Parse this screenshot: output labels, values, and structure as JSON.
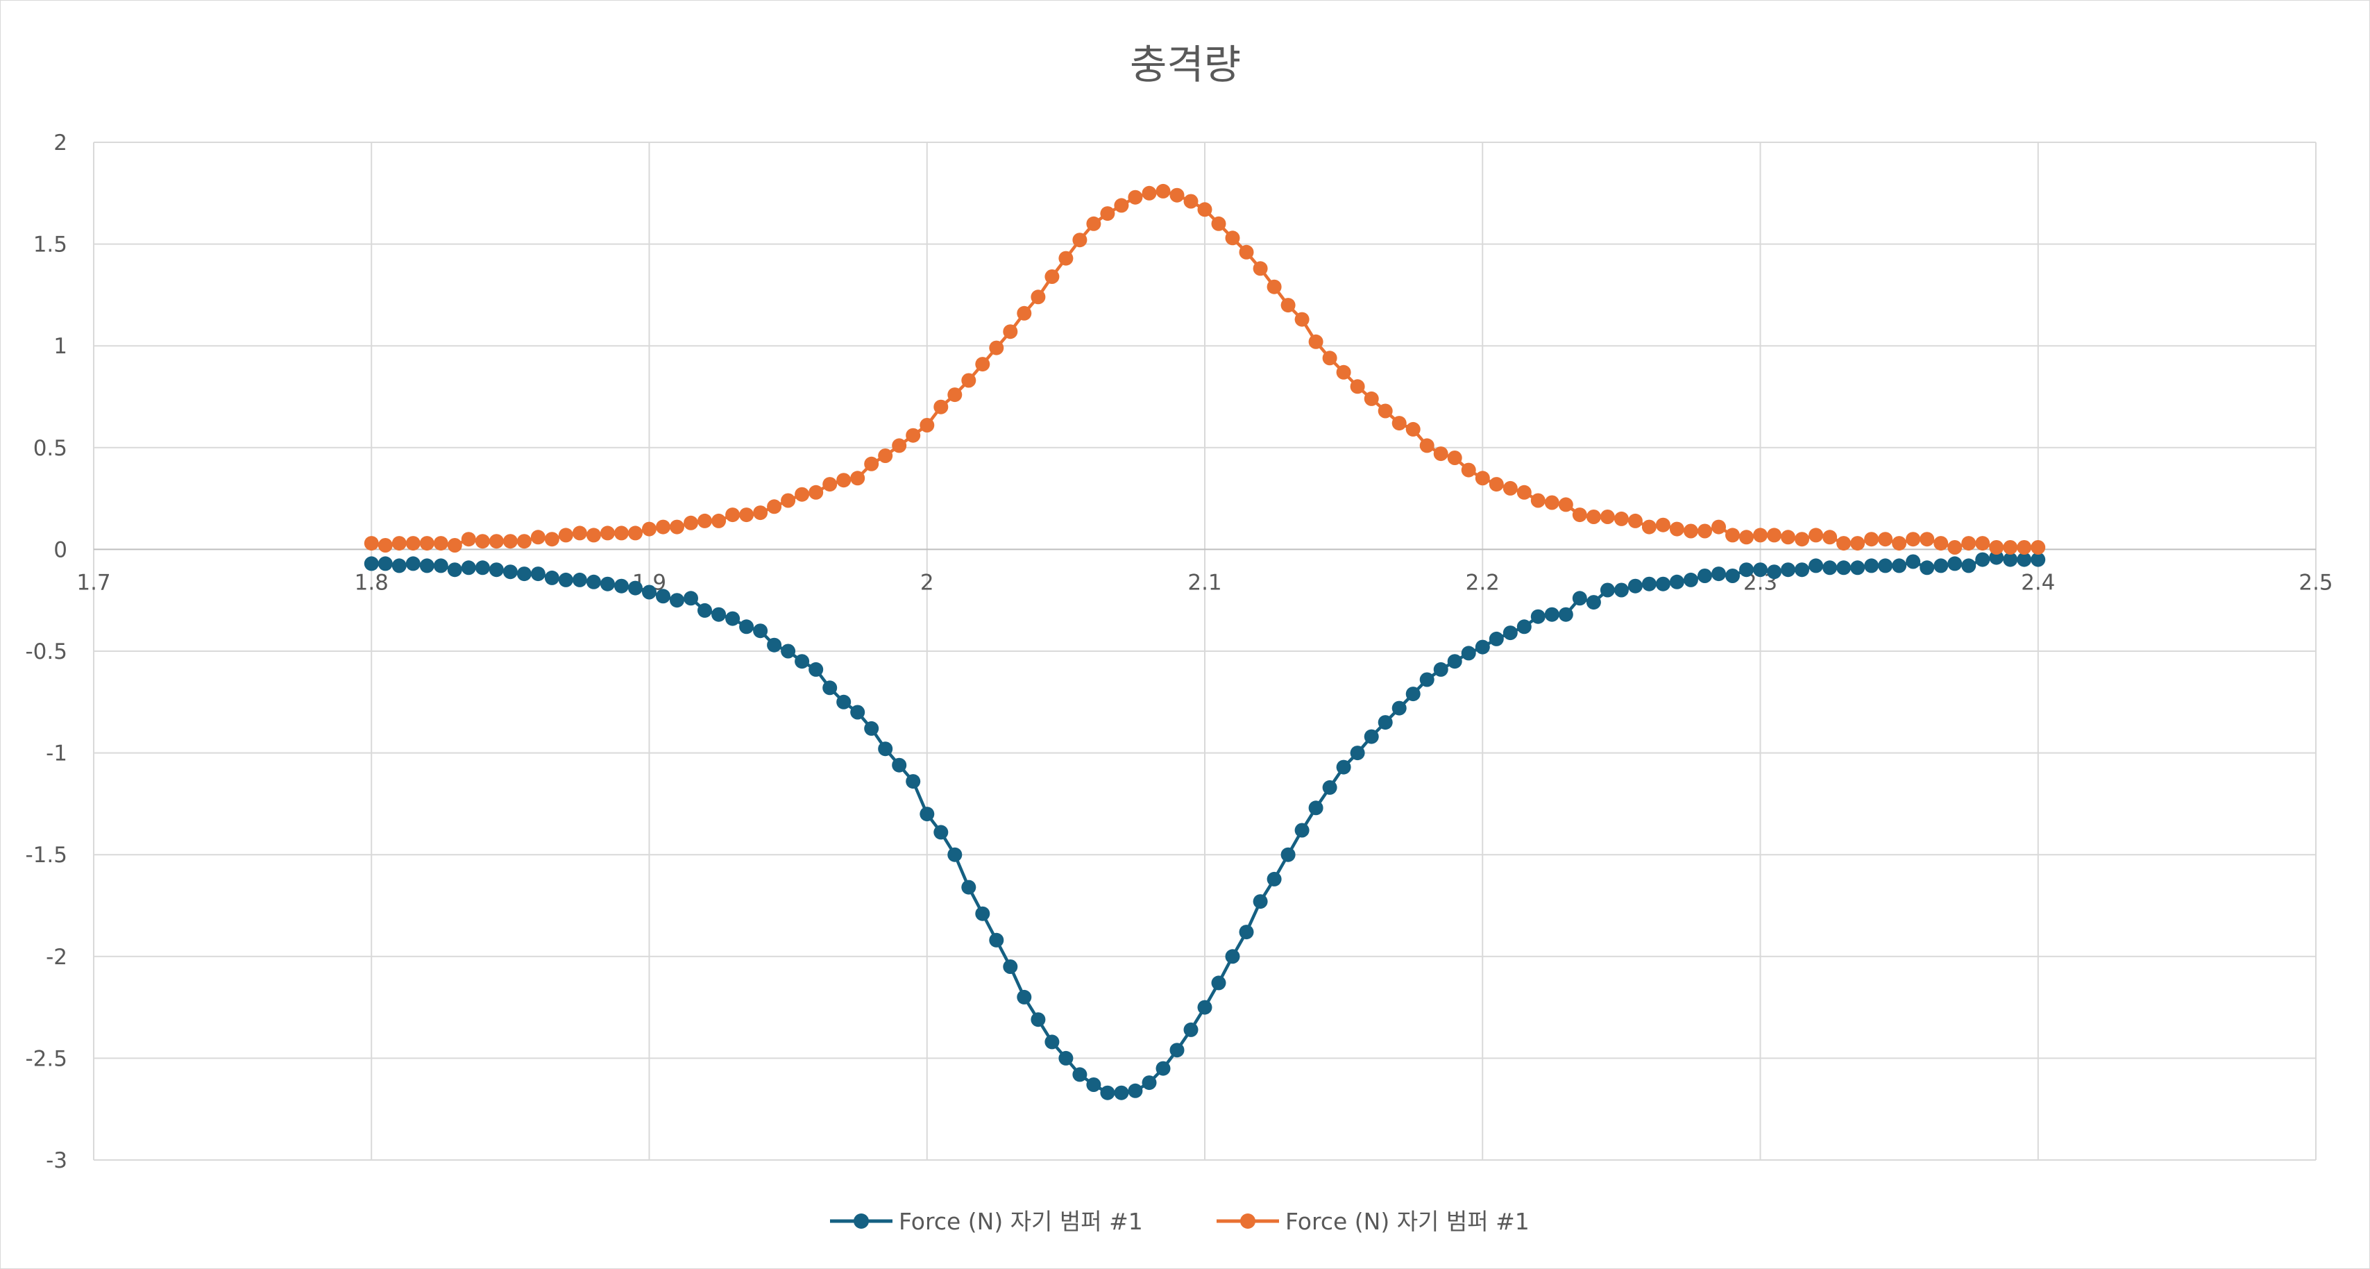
{
  "chart_data": {
    "type": "scatter",
    "title": "충격량",
    "xlabel": "",
    "ylabel": "",
    "xlim": [
      1.7,
      2.5
    ],
    "ylim": [
      -3,
      2
    ],
    "x_ticks": [
      "1.7",
      "1.8",
      "1.9",
      "2",
      "2.1",
      "2.2",
      "2.3",
      "2.4",
      "2.5"
    ],
    "y_ticks": [
      "2",
      "1.5",
      "1",
      "0.5",
      "0",
      "-0.5",
      "-1",
      "-1.5",
      "-2",
      "-2.5",
      "-3"
    ],
    "grid": true,
    "legend_position": "bottom",
    "x_start": 1.8,
    "x_step": 0.005,
    "series": [
      {
        "name": "Force (N) 자기 범퍼 #1",
        "color": "#156082",
        "marker": "circle",
        "values": [
          -0.07,
          -0.07,
          -0.08,
          -0.07,
          -0.08,
          -0.08,
          -0.1,
          -0.09,
          -0.09,
          -0.1,
          -0.11,
          -0.12,
          -0.12,
          -0.14,
          -0.15,
          -0.15,
          -0.16,
          -0.17,
          -0.18,
          -0.19,
          -0.21,
          -0.23,
          -0.25,
          -0.24,
          -0.3,
          -0.32,
          -0.34,
          -0.38,
          -0.4,
          -0.47,
          -0.5,
          -0.55,
          -0.59,
          -0.68,
          -0.75,
          -0.8,
          -0.88,
          -0.98,
          -1.06,
          -1.14,
          -1.3,
          -1.39,
          -1.5,
          -1.66,
          -1.79,
          -1.92,
          -2.05,
          -2.2,
          -2.31,
          -2.42,
          -2.5,
          -2.58,
          -2.63,
          -2.67,
          -2.67,
          -2.66,
          -2.62,
          -2.55,
          -2.46,
          -2.36,
          -2.25,
          -2.13,
          -2.0,
          -1.88,
          -1.73,
          -1.62,
          -1.5,
          -1.38,
          -1.27,
          -1.17,
          -1.07,
          -1.0,
          -0.92,
          -0.85,
          -0.78,
          -0.71,
          -0.64,
          -0.59,
          -0.55,
          -0.51,
          -0.48,
          -0.44,
          -0.41,
          -0.38,
          -0.33,
          -0.32,
          -0.32,
          -0.24,
          -0.26,
          -0.2,
          -0.2,
          -0.18,
          -0.17,
          -0.17,
          -0.16,
          -0.15,
          -0.13,
          -0.12,
          -0.13,
          -0.1,
          -0.1,
          -0.11,
          -0.1,
          -0.1,
          -0.08,
          -0.09,
          -0.09,
          -0.09,
          -0.08,
          -0.08,
          -0.08,
          -0.06,
          -0.09,
          -0.08,
          -0.07,
          -0.08,
          -0.05,
          -0.04,
          -0.05,
          -0.05,
          -0.05
        ]
      },
      {
        "name": "Force (N) 자기 범퍼 #1",
        "color": "#E97132",
        "marker": "circle",
        "values": [
          0.03,
          0.02,
          0.03,
          0.03,
          0.03,
          0.03,
          0.02,
          0.05,
          0.04,
          0.04,
          0.04,
          0.04,
          0.06,
          0.05,
          0.07,
          0.08,
          0.07,
          0.08,
          0.08,
          0.08,
          0.1,
          0.11,
          0.11,
          0.13,
          0.14,
          0.14,
          0.17,
          0.17,
          0.18,
          0.21,
          0.24,
          0.27,
          0.28,
          0.32,
          0.34,
          0.35,
          0.42,
          0.46,
          0.51,
          0.56,
          0.61,
          0.7,
          0.76,
          0.83,
          0.91,
          0.99,
          1.07,
          1.16,
          1.24,
          1.34,
          1.43,
          1.52,
          1.6,
          1.65,
          1.69,
          1.73,
          1.75,
          1.76,
          1.74,
          1.71,
          1.67,
          1.6,
          1.53,
          1.46,
          1.38,
          1.29,
          1.2,
          1.13,
          1.02,
          0.94,
          0.87,
          0.8,
          0.74,
          0.68,
          0.62,
          0.59,
          0.51,
          0.47,
          0.45,
          0.39,
          0.35,
          0.32,
          0.3,
          0.28,
          0.24,
          0.23,
          0.22,
          0.17,
          0.16,
          0.16,
          0.15,
          0.14,
          0.11,
          0.12,
          0.1,
          0.09,
          0.09,
          0.11,
          0.07,
          0.06,
          0.07,
          0.07,
          0.06,
          0.05,
          0.07,
          0.06,
          0.03,
          0.03,
          0.05,
          0.05,
          0.03,
          0.05,
          0.05,
          0.03,
          0.01,
          0.03,
          0.03,
          0.01,
          0.01,
          0.01,
          0.01
        ]
      }
    ]
  }
}
